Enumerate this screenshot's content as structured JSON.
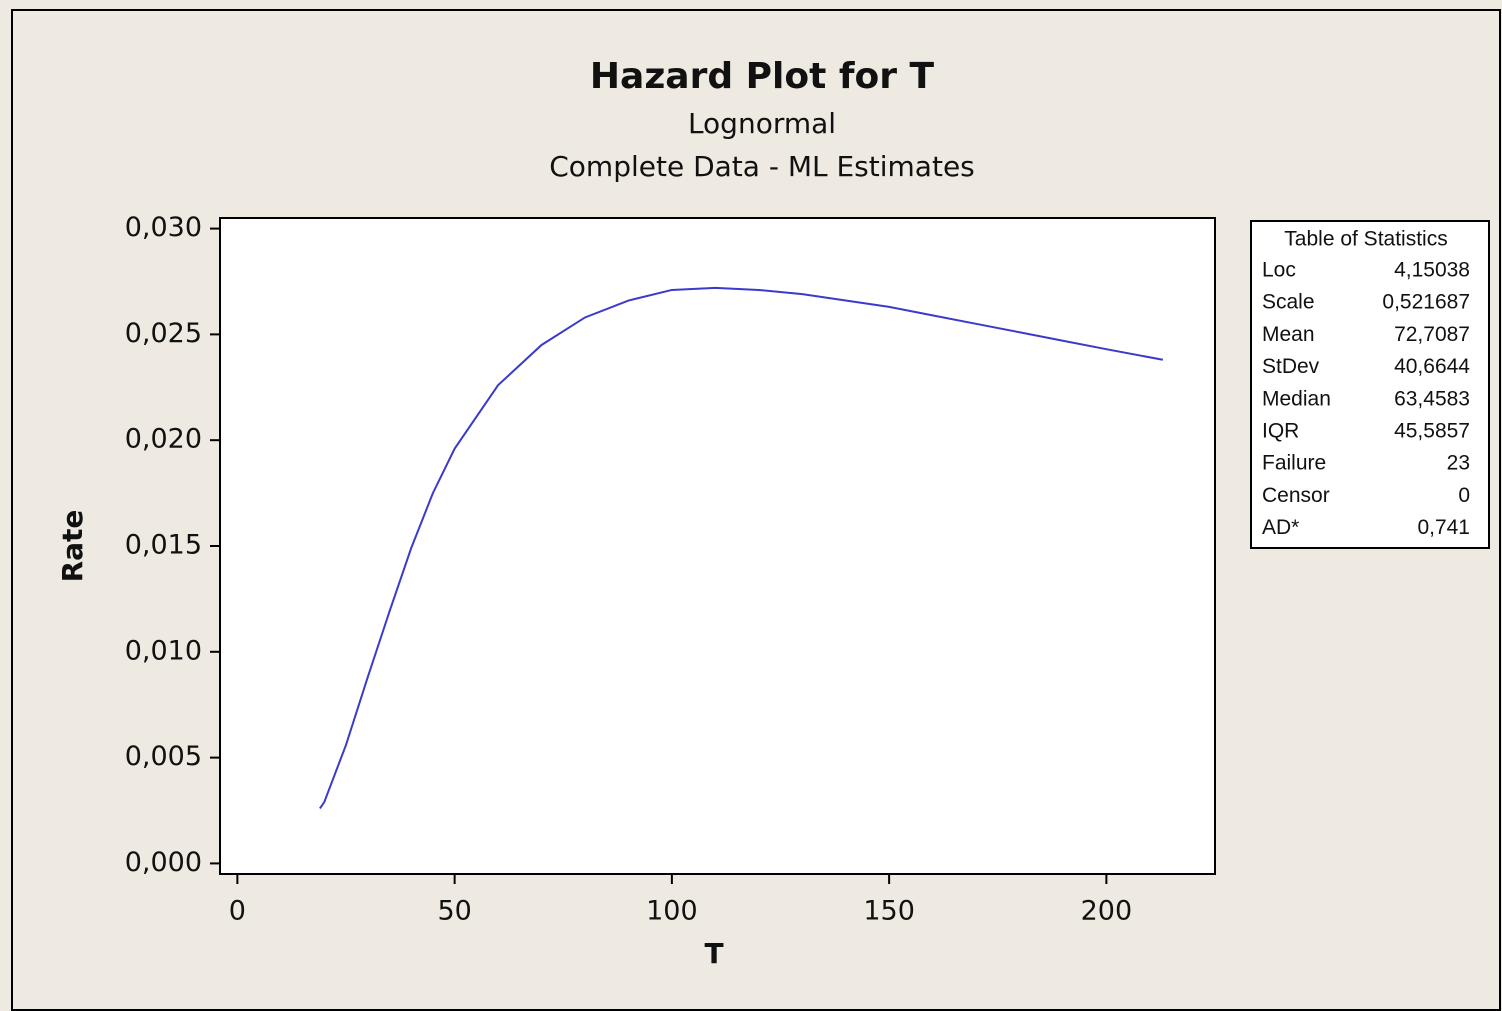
{
  "chart_data": {
    "type": "line",
    "title": "Hazard Plot for T",
    "subtitle": [
      "Lognormal",
      "Complete Data - ML Estimates"
    ],
    "xlabel": "T",
    "ylabel": "Rate",
    "x": [
      19,
      20,
      25,
      30,
      35,
      40,
      45,
      50,
      60,
      70,
      80,
      90,
      100,
      110,
      120,
      130,
      140,
      150,
      160,
      170,
      180,
      190,
      200,
      213
    ],
    "values": [
      0.0026,
      0.0029,
      0.0056,
      0.0088,
      0.0119,
      0.0149,
      0.0175,
      0.0196,
      0.0226,
      0.0245,
      0.0258,
      0.0266,
      0.0271,
      0.0272,
      0.0271,
      0.0269,
      0.0266,
      0.0263,
      0.0259,
      0.0255,
      0.0251,
      0.0247,
      0.0243,
      0.0238
    ],
    "color": "#3a3acc",
    "xlim": [
      -4,
      225
    ],
    "ylim": [
      -0.0005,
      0.0305
    ],
    "xticks": [
      0,
      50,
      100,
      150,
      200
    ],
    "yticks": [
      {
        "value": 0,
        "label": "0,000"
      },
      {
        "value": 0.005,
        "label": "0,005"
      },
      {
        "value": 0.01,
        "label": "0,010"
      },
      {
        "value": 0.015,
        "label": "0,015"
      },
      {
        "value": 0.02,
        "label": "0,020"
      },
      {
        "value": 0.025,
        "label": "0,025"
      },
      {
        "value": 0.03,
        "label": "0,030"
      }
    ],
    "stats_table": {
      "title": "Table of Statistics",
      "rows": [
        [
          "Loc",
          "4,15038"
        ],
        [
          "Scale",
          "0,521687"
        ],
        [
          "Mean",
          "72,7087"
        ],
        [
          "StDev",
          "40,6644"
        ],
        [
          "Median",
          "63,4583"
        ],
        [
          "IQR",
          "45,5857"
        ],
        [
          "Failure",
          "23"
        ],
        [
          "Censor",
          "0"
        ],
        [
          "AD*",
          "0,741"
        ]
      ]
    }
  }
}
